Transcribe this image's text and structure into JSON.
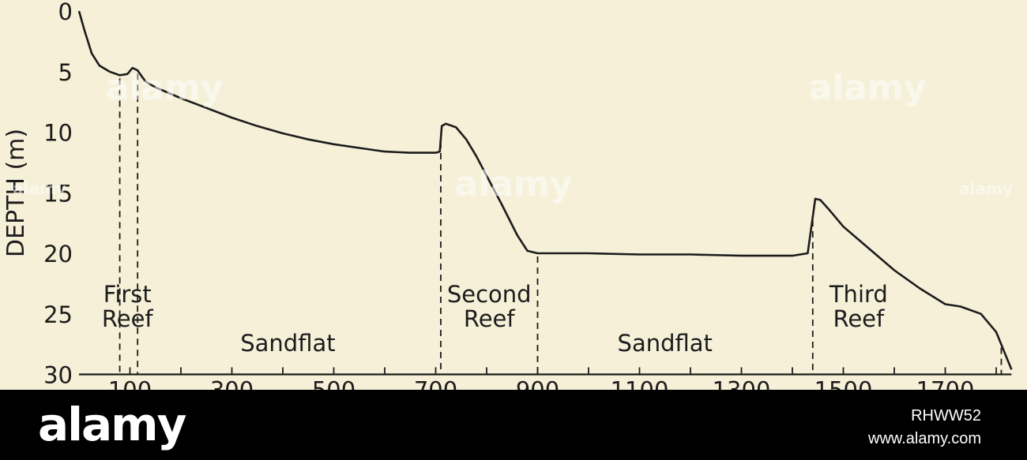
{
  "chart_data": {
    "type": "line",
    "ylabel": "DEPTH (m)",
    "y_ticks": [
      "0",
      "5",
      "10",
      "15",
      "20",
      "25",
      "30"
    ],
    "ylim": [
      0,
      30
    ],
    "y_inverted": true,
    "x_tick_labels": [
      "100",
      "300",
      "500",
      "700",
      "900",
      "1100",
      "1300",
      "1500",
      "1700"
    ],
    "xlim": [
      0,
      1800
    ],
    "series": [
      {
        "color": "#1c1c1c",
        "x": [
          0,
          10,
          25,
          40,
          60,
          80,
          95,
          105,
          115,
          130,
          150,
          200,
          250,
          300,
          350,
          400,
          450,
          500,
          550,
          600,
          650,
          700,
          708,
          712,
          720,
          740,
          760,
          780,
          800,
          830,
          860,
          880,
          900,
          950,
          1000,
          1100,
          1200,
          1300,
          1400,
          1430,
          1440,
          1445,
          1455,
          1470,
          1500,
          1550,
          1600,
          1650,
          1700,
          1730,
          1770,
          1800,
          1830
        ],
        "y": [
          0,
          1.5,
          3.5,
          4.5,
          5.0,
          5.3,
          5.2,
          4.7,
          4.9,
          5.8,
          6.3,
          7.2,
          8.0,
          8.8,
          9.5,
          10.1,
          10.6,
          11.0,
          11.3,
          11.6,
          11.7,
          11.7,
          11.6,
          9.5,
          9.3,
          9.6,
          10.6,
          12.0,
          13.6,
          16.0,
          18.5,
          19.8,
          20.0,
          20.0,
          20.0,
          20.1,
          20.1,
          20.2,
          20.2,
          20.0,
          17.0,
          15.5,
          15.6,
          16.3,
          17.8,
          19.6,
          21.4,
          22.9,
          24.2,
          24.4,
          25.0,
          26.5,
          29.6
        ]
      }
    ],
    "annotations": {
      "first_reef": "First\nReef",
      "second_reef": "Second\nReef",
      "third_reef": "Third\nReef",
      "sandflat_1": "Sandflat",
      "sandflat_2": "Sandflat"
    },
    "reference_lines_x": [
      80,
      115,
      710,
      900,
      1440,
      1810
    ]
  },
  "watermark": {
    "text": "alamy",
    "logo_text": "alamy",
    "image_id": "RHWW52",
    "url": "www.alamy.com"
  }
}
